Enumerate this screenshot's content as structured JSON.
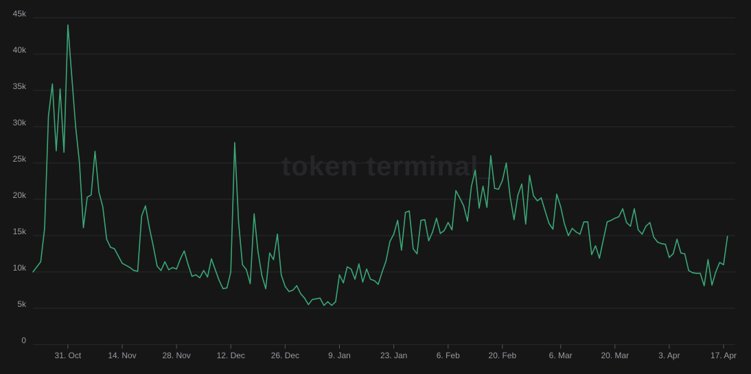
{
  "watermark": "token terminal_",
  "colors": {
    "background": "#161617",
    "line": "#3aa875",
    "grid": "#2b2b2f",
    "axis_text": "#9a9aa0"
  },
  "chart_data": {
    "type": "line",
    "title": "",
    "xlabel": "",
    "ylabel": "",
    "ylim": [
      0,
      45000
    ],
    "grid": true,
    "y_ticks": [
      {
        "value": 0,
        "label": "0"
      },
      {
        "value": 5000,
        "label": "5k"
      },
      {
        "value": 10000,
        "label": "10k"
      },
      {
        "value": 15000,
        "label": "15k"
      },
      {
        "value": 20000,
        "label": "20k"
      },
      {
        "value": 25000,
        "label": "25k"
      },
      {
        "value": 30000,
        "label": "30k"
      },
      {
        "value": 35000,
        "label": "35k"
      },
      {
        "value": 40000,
        "label": "40k"
      },
      {
        "value": 45000,
        "label": "45k"
      }
    ],
    "x_ticks": [
      {
        "date": "2023-10-31",
        "label": "31. Oct"
      },
      {
        "date": "2023-11-14",
        "label": "14. Nov"
      },
      {
        "date": "2023-11-28",
        "label": "28. Nov"
      },
      {
        "date": "2023-12-12",
        "label": "12. Dec"
      },
      {
        "date": "2023-12-26",
        "label": "26. Dec"
      },
      {
        "date": "2024-01-09",
        "label": "9. Jan"
      },
      {
        "date": "2024-01-23",
        "label": "23. Jan"
      },
      {
        "date": "2024-02-06",
        "label": "6. Feb"
      },
      {
        "date": "2024-02-20",
        "label": "20. Feb"
      },
      {
        "date": "2024-03-06",
        "label": "6. Mar"
      },
      {
        "date": "2024-03-20",
        "label": "20. Mar"
      },
      {
        "date": "2024-04-03",
        "label": "3. Apr"
      },
      {
        "date": "2024-04-17",
        "label": "17. Apr"
      }
    ],
    "x_range": [
      "2023-10-22",
      "2024-04-20"
    ],
    "series": [
      {
        "color": "#3aa875",
        "points": [
          [
            "2023-10-22",
            10000
          ],
          [
            "2023-10-23",
            10700
          ],
          [
            "2023-10-24",
            11400
          ],
          [
            "2023-10-25",
            16000
          ],
          [
            "2023-10-26",
            31500
          ],
          [
            "2023-10-27",
            35900
          ],
          [
            "2023-10-28",
            26700
          ],
          [
            "2023-10-29",
            35200
          ],
          [
            "2023-10-30",
            26500
          ],
          [
            "2023-10-31",
            44000
          ],
          [
            "2023-11-01",
            37000
          ],
          [
            "2023-11-02",
            30000
          ],
          [
            "2023-11-03",
            25000
          ],
          [
            "2023-11-04",
            16100
          ],
          [
            "2023-11-05",
            20300
          ],
          [
            "2023-11-06",
            20600
          ],
          [
            "2023-11-07",
            26600
          ],
          [
            "2023-11-08",
            21000
          ],
          [
            "2023-11-09",
            19000
          ],
          [
            "2023-11-10",
            14500
          ],
          [
            "2023-11-11",
            13400
          ],
          [
            "2023-11-12",
            13200
          ],
          [
            "2023-11-14",
            11200
          ],
          [
            "2023-11-16",
            10600
          ],
          [
            "2023-11-17",
            10200
          ],
          [
            "2023-11-18",
            10100
          ],
          [
            "2023-11-19",
            17700
          ],
          [
            "2023-11-20",
            19100
          ],
          [
            "2023-11-21",
            16100
          ],
          [
            "2023-11-22",
            13600
          ],
          [
            "2023-11-23",
            10800
          ],
          [
            "2023-11-24",
            10200
          ],
          [
            "2023-11-25",
            11400
          ],
          [
            "2023-11-26",
            10300
          ],
          [
            "2023-11-27",
            10600
          ],
          [
            "2023-11-28",
            10400
          ],
          [
            "2023-11-29",
            11800
          ],
          [
            "2023-11-30",
            12900
          ],
          [
            "2023-12-01",
            11000
          ],
          [
            "2023-12-02",
            9400
          ],
          [
            "2023-12-03",
            9600
          ],
          [
            "2023-12-04",
            9200
          ],
          [
            "2023-12-05",
            10200
          ],
          [
            "2023-12-06",
            9300
          ],
          [
            "2023-12-07",
            11800
          ],
          [
            "2023-12-08",
            10300
          ],
          [
            "2023-12-09",
            8800
          ],
          [
            "2023-12-10",
            7700
          ],
          [
            "2023-12-11",
            7800
          ],
          [
            "2023-12-12",
            10000
          ],
          [
            "2023-12-13",
            27800
          ],
          [
            "2023-12-14",
            16800
          ],
          [
            "2023-12-15",
            11000
          ],
          [
            "2023-12-16",
            10300
          ],
          [
            "2023-12-17",
            8400
          ],
          [
            "2023-12-18",
            18000
          ],
          [
            "2023-12-19",
            12800
          ],
          [
            "2023-12-20",
            9500
          ],
          [
            "2023-12-21",
            7700
          ],
          [
            "2023-12-22",
            12600
          ],
          [
            "2023-12-23",
            11700
          ],
          [
            "2023-12-24",
            15200
          ],
          [
            "2023-12-25",
            9600
          ],
          [
            "2023-12-26",
            8000
          ],
          [
            "2023-12-27",
            7300
          ],
          [
            "2023-12-28",
            7500
          ],
          [
            "2023-12-29",
            8100
          ],
          [
            "2023-12-30",
            7000
          ],
          [
            "2023-12-31",
            6400
          ],
          [
            "2024-01-01",
            5500
          ],
          [
            "2024-01-02",
            6200
          ],
          [
            "2024-01-03",
            6300
          ],
          [
            "2024-01-04",
            6400
          ],
          [
            "2024-01-05",
            5400
          ],
          [
            "2024-01-06",
            5900
          ],
          [
            "2024-01-07",
            5400
          ],
          [
            "2024-01-08",
            5900
          ],
          [
            "2024-01-09",
            9600
          ],
          [
            "2024-01-10",
            8500
          ],
          [
            "2024-01-11",
            10700
          ],
          [
            "2024-01-12",
            10400
          ],
          [
            "2024-01-13",
            9000
          ],
          [
            "2024-01-14",
            11100
          ],
          [
            "2024-01-15",
            8600
          ],
          [
            "2024-01-16",
            10400
          ],
          [
            "2024-01-17",
            9000
          ],
          [
            "2024-01-18",
            8800
          ],
          [
            "2024-01-19",
            8300
          ],
          [
            "2024-01-20",
            10000
          ],
          [
            "2024-01-21",
            11500
          ],
          [
            "2024-01-22",
            14200
          ],
          [
            "2024-01-23",
            15200
          ],
          [
            "2024-01-24",
            17100
          ],
          [
            "2024-01-25",
            13000
          ],
          [
            "2024-01-26",
            18200
          ],
          [
            "2024-01-27",
            18400
          ],
          [
            "2024-01-28",
            13200
          ],
          [
            "2024-01-29",
            12500
          ],
          [
            "2024-01-30",
            17100
          ],
          [
            "2024-01-31",
            17200
          ],
          [
            "2024-02-01",
            14300
          ],
          [
            "2024-02-02",
            15500
          ],
          [
            "2024-02-03",
            17400
          ],
          [
            "2024-02-04",
            15300
          ],
          [
            "2024-02-05",
            15700
          ],
          [
            "2024-02-06",
            16800
          ],
          [
            "2024-02-07",
            15800
          ],
          [
            "2024-02-08",
            21200
          ],
          [
            "2024-02-09",
            20200
          ],
          [
            "2024-02-10",
            19100
          ],
          [
            "2024-02-11",
            17000
          ],
          [
            "2024-02-12",
            21800
          ],
          [
            "2024-02-13",
            24000
          ],
          [
            "2024-02-14",
            18800
          ],
          [
            "2024-02-15",
            21800
          ],
          [
            "2024-02-16",
            18900
          ],
          [
            "2024-02-17",
            26000
          ],
          [
            "2024-02-18",
            21500
          ],
          [
            "2024-02-19",
            21400
          ],
          [
            "2024-02-20",
            22600
          ],
          [
            "2024-02-21",
            25000
          ],
          [
            "2024-02-22",
            20300
          ],
          [
            "2024-02-23",
            17200
          ],
          [
            "2024-02-24",
            20600
          ],
          [
            "2024-02-25",
            22100
          ],
          [
            "2024-02-26",
            16600
          ],
          [
            "2024-02-27",
            23300
          ],
          [
            "2024-02-28",
            20500
          ],
          [
            "2024-02-29",
            19800
          ],
          [
            "2024-03-01",
            20200
          ],
          [
            "2024-03-02",
            18400
          ],
          [
            "2024-03-03",
            16700
          ],
          [
            "2024-03-04",
            15900
          ],
          [
            "2024-03-05",
            20700
          ],
          [
            "2024-03-06",
            19000
          ],
          [
            "2024-03-07",
            16600
          ],
          [
            "2024-03-08",
            15000
          ],
          [
            "2024-03-09",
            16000
          ],
          [
            "2024-03-10",
            15500
          ],
          [
            "2024-03-11",
            15200
          ],
          [
            "2024-03-12",
            16900
          ],
          [
            "2024-03-13",
            16900
          ],
          [
            "2024-03-14",
            12400
          ],
          [
            "2024-03-15",
            13600
          ],
          [
            "2024-03-16",
            11900
          ],
          [
            "2024-03-17",
            14400
          ],
          [
            "2024-03-18",
            16900
          ],
          [
            "2024-03-19",
            17100
          ],
          [
            "2024-03-20",
            17400
          ],
          [
            "2024-03-21",
            17600
          ],
          [
            "2024-03-22",
            18700
          ],
          [
            "2024-03-23",
            16800
          ],
          [
            "2024-03-24",
            16300
          ],
          [
            "2024-03-25",
            18700
          ],
          [
            "2024-03-26",
            15800
          ],
          [
            "2024-03-27",
            15200
          ],
          [
            "2024-03-28",
            16300
          ],
          [
            "2024-03-29",
            16800
          ],
          [
            "2024-03-30",
            14800
          ],
          [
            "2024-03-31",
            14100
          ],
          [
            "2024-04-01",
            13900
          ],
          [
            "2024-04-02",
            13800
          ],
          [
            "2024-04-03",
            12000
          ],
          [
            "2024-04-04",
            12500
          ],
          [
            "2024-04-05",
            14500
          ],
          [
            "2024-04-06",
            12600
          ],
          [
            "2024-04-07",
            12500
          ],
          [
            "2024-04-08",
            10200
          ],
          [
            "2024-04-09",
            9900
          ],
          [
            "2024-04-10",
            9800
          ],
          [
            "2024-04-11",
            9800
          ],
          [
            "2024-04-12",
            8100
          ],
          [
            "2024-04-13",
            11700
          ],
          [
            "2024-04-14",
            8200
          ],
          [
            "2024-04-15",
            10000
          ],
          [
            "2024-04-16",
            11300
          ],
          [
            "2024-04-17",
            11000
          ],
          [
            "2024-04-18",
            14900
          ]
        ]
      }
    ]
  }
}
